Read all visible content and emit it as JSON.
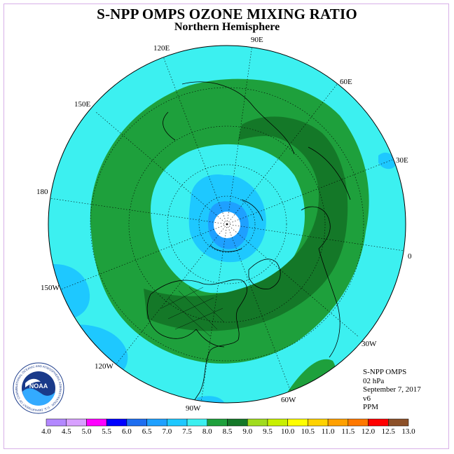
{
  "title": "S-NPP OMPS OZONE MIXING RATIO",
  "subtitle": "Northern Hemisphere",
  "longitude_labels": {
    "e90": "90E",
    "e120": "120E",
    "e60": "60E",
    "e150": "150E",
    "e30": "30E",
    "l180": "180",
    "l0": "0",
    "w150": "150W",
    "w30": "30W",
    "w120": "120W",
    "w60": "60W",
    "w90": "90W"
  },
  "info": {
    "instrument": "S-NPP OMPS",
    "level": "02 hPa",
    "date": "September 7, 2017",
    "version": "v6",
    "units": "PPM"
  },
  "logo_text": "NOAA",
  "logo_ring_text": "NATIONAL OCEANIC AND ATMOSPHERIC ADMINISTRATION · U.S. DEPARTMENT OF COMMERCE",
  "colorbar": {
    "ticks": [
      "4.0",
      "4.5",
      "5.0",
      "5.5",
      "6.0",
      "6.5",
      "7.0",
      "7.5",
      "8.0",
      "8.5",
      "9.0",
      "9.5",
      "10.0",
      "10.5",
      "11.0",
      "11.5",
      "12.0",
      "12.5",
      "13.0"
    ],
    "colors": [
      "#b388ff",
      "#d8a0ff",
      "#ff00ff",
      "#0000ff",
      "#1e6ef0",
      "#1ea0ff",
      "#1ec8ff",
      "#3cf0f0",
      "#1ea03c",
      "#147828",
      "#a0dc1e",
      "#c8f000",
      "#ffff00",
      "#ffd200",
      "#ffa000",
      "#ff7800",
      "#ff0000",
      "#8c5028"
    ]
  },
  "map_legend": {
    "ozone_level_colors": {
      "v6_5": "#1ea0ff",
      "v7_0": "#1ec8ff",
      "v7_5": "#3cf0f0",
      "v8_0": "#1ea03c",
      "v8_5": "#147828"
    },
    "pole_fill": "#ffffff"
  }
}
